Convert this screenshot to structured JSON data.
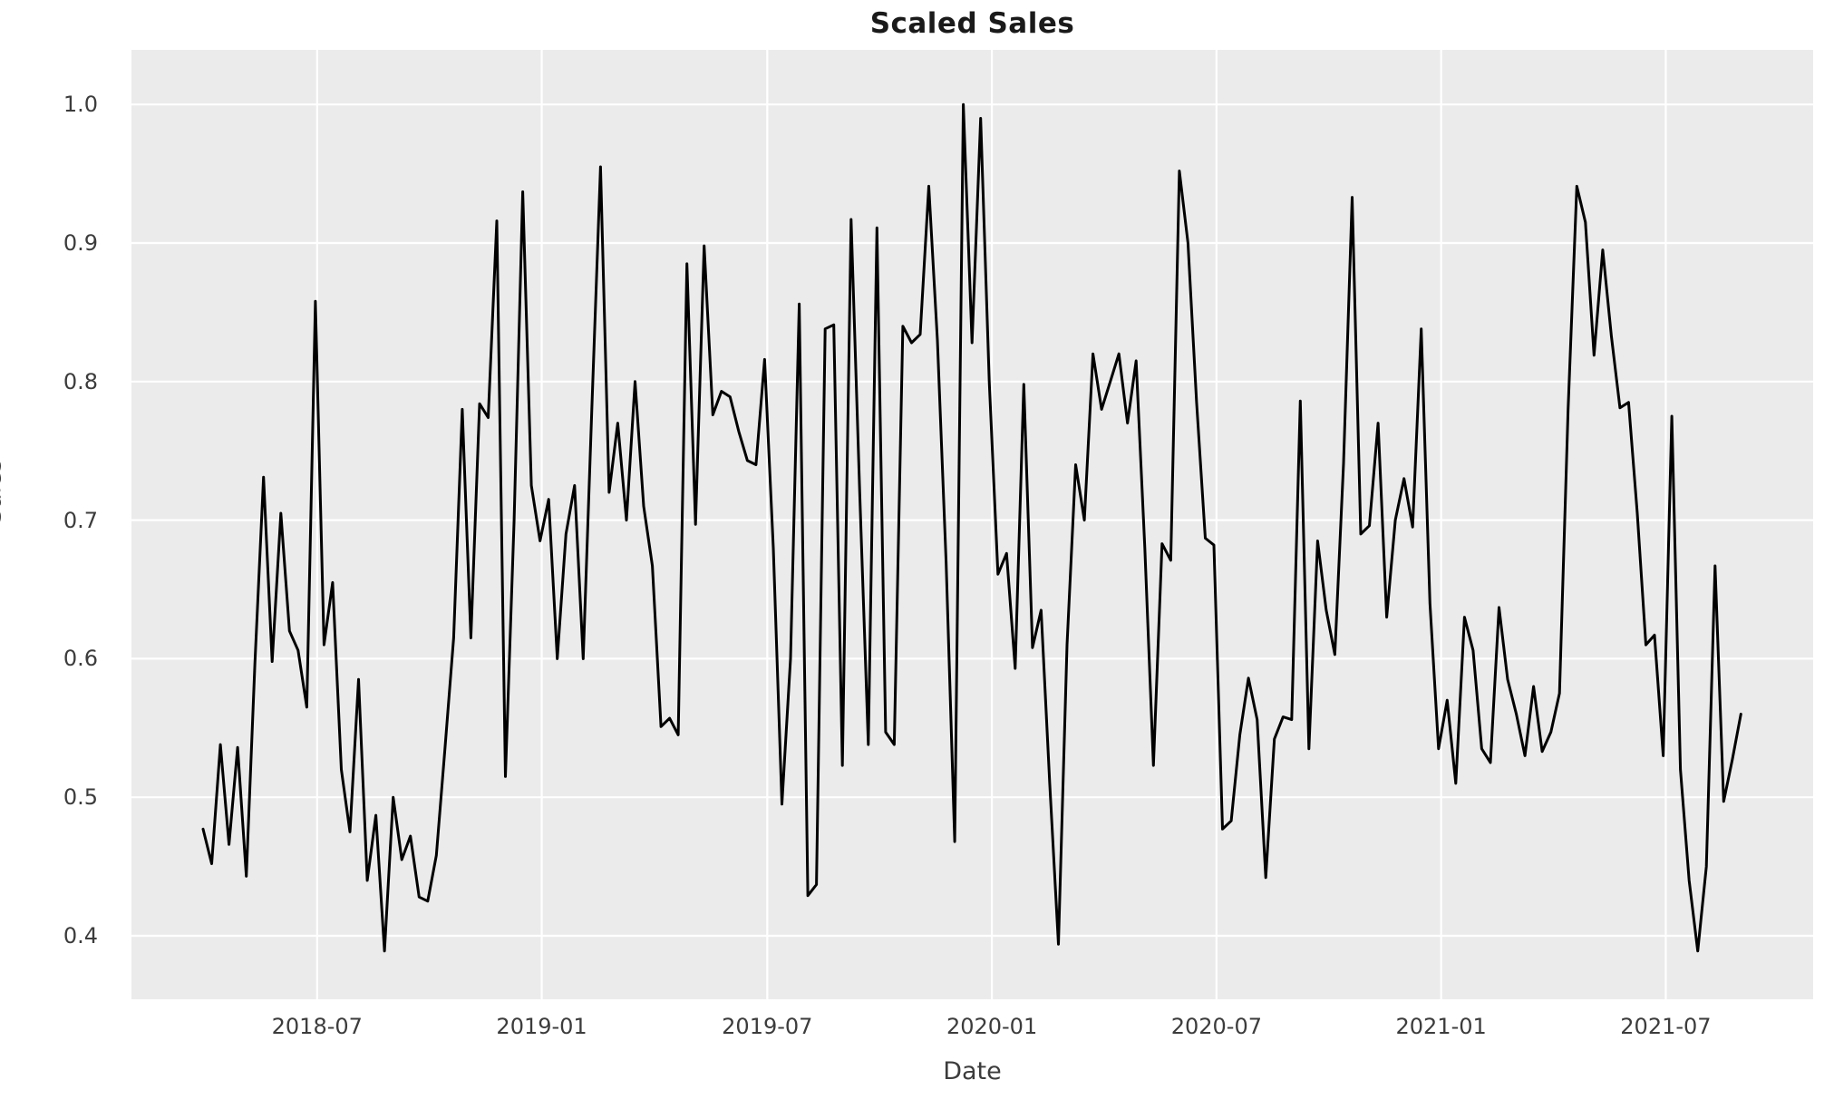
{
  "chart_data": {
    "type": "line",
    "title": "Scaled Sales",
    "xlabel": "Date",
    "ylabel": "Sales",
    "grid": true,
    "legend": "none",
    "plot_bg_color": "#ebebeb",
    "grid_color": "#ffffff",
    "line_color": "#000000",
    "ylim": [
      0.35,
      1.04
    ],
    "y_ticks": [
      0.4,
      0.5,
      0.6,
      0.7,
      0.8,
      0.9,
      1.0
    ],
    "y_tick_labels": [
      "0.4",
      "0.5",
      "0.6",
      "0.7",
      "0.8",
      "0.9",
      "1.0"
    ],
    "x_tick_labels": [
      "2018-07",
      "2019-01",
      "2019-07",
      "2020-01",
      "2020-07",
      "2021-01",
      "2021-07"
    ],
    "x_tick_positions_weeks": [
      13.2,
      39.2,
      65.3,
      91.3,
      117.3,
      143.3,
      169.3
    ],
    "series_name": "Sales",
    "x_start": "2018-04-01",
    "x_freq_days": 7,
    "n_points": 179,
    "values": [
      0.477,
      0.452,
      0.538,
      0.466,
      0.536,
      0.443,
      0.597,
      0.731,
      0.598,
      0.705,
      0.62,
      0.606,
      0.565,
      0.858,
      0.61,
      0.655,
      0.52,
      0.475,
      0.585,
      0.44,
      0.487,
      0.389,
      0.5,
      0.455,
      0.472,
      0.428,
      0.425,
      0.458,
      0.535,
      0.615,
      0.78,
      0.615,
      0.784,
      0.774,
      0.916,
      0.515,
      0.7,
      0.937,
      0.725,
      0.685,
      0.715,
      0.6,
      0.69,
      0.725,
      0.6,
      0.78,
      0.955,
      0.72,
      0.77,
      0.7,
      0.8,
      0.71,
      0.667,
      0.551,
      0.557,
      0.545,
      0.885,
      0.697,
      0.898,
      0.776,
      0.793,
      0.789,
      0.764,
      0.743,
      0.74,
      0.816,
      0.68,
      0.495,
      0.6,
      0.856,
      0.429,
      0.437,
      0.838,
      0.841,
      0.523,
      0.917,
      0.72,
      0.538,
      0.911,
      0.547,
      0.538,
      0.84,
      0.828,
      0.834,
      0.941,
      0.83,
      0.67,
      0.468,
      1.0,
      0.828,
      0.99,
      0.8,
      0.661,
      0.676,
      0.593,
      0.798,
      0.608,
      0.635,
      0.51,
      0.394,
      0.61,
      0.74,
      0.7,
      0.82,
      0.78,
      0.8,
      0.82,
      0.77,
      0.815,
      0.68,
      0.523,
      0.683,
      0.671,
      0.952,
      0.9,
      0.785,
      0.687,
      0.682,
      0.477,
      0.483,
      0.545,
      0.586,
      0.556,
      0.442,
      0.542,
      0.558,
      0.556,
      0.786,
      0.535,
      0.685,
      0.635,
      0.603,
      0.741,
      0.933,
      0.69,
      0.696,
      0.77,
      0.63,
      0.7,
      0.73,
      0.695,
      0.838,
      0.64,
      0.535,
      0.57,
      0.51,
      0.63,
      0.606,
      0.535,
      0.525,
      0.637,
      0.585,
      0.56,
      0.53,
      0.58,
      0.533,
      0.547,
      0.575,
      0.78,
      0.941,
      0.915,
      0.819,
      0.895,
      0.833,
      0.781,
      0.785,
      0.705,
      0.61,
      0.617,
      0.53,
      0.775,
      0.52,
      0.44,
      0.389,
      0.45,
      0.667,
      0.497,
      0.527,
      0.56
    ]
  }
}
